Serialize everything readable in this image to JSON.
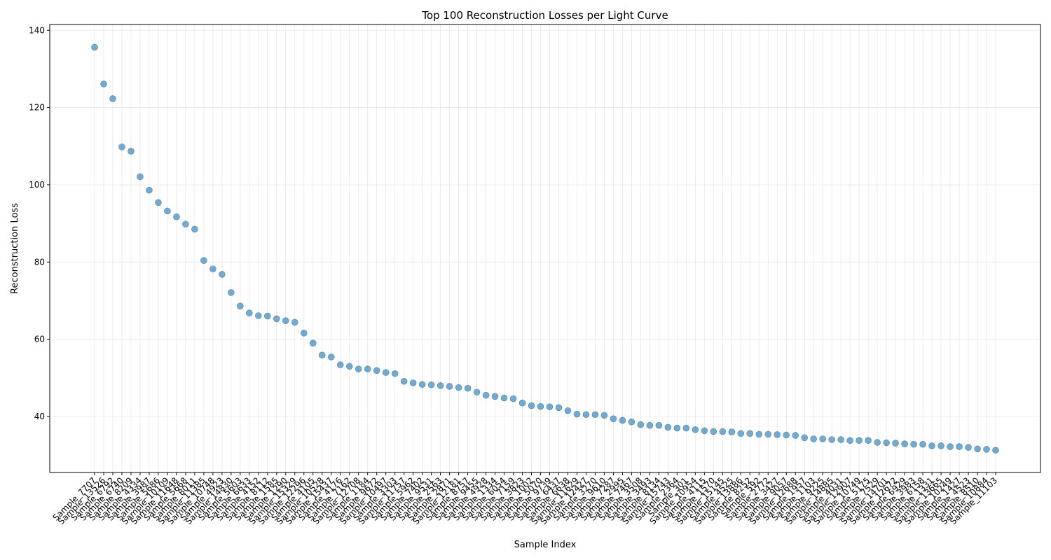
{
  "chart_data": {
    "type": "scatter",
    "title": "Top 100 Reconstruction Losses per Light Curve",
    "xlabel": "Sample Index",
    "ylabel": "Reconstruction Loss",
    "ylim": [
      25.5,
      141.5
    ],
    "yticks": [
      40,
      60,
      80,
      100,
      120,
      140
    ],
    "grid": true,
    "marker_color": "#1f77b4",
    "categories": [
      "Sample_7707",
      "Sample_13526",
      "Sample_6792",
      "Sample_6740",
      "Sample_8209",
      "Sample_4334",
      "Sample_3987",
      "Sample_5686",
      "Sample_10109",
      "Sample_11648",
      "Sample_5668",
      "Sample_8011",
      "Sample_11385",
      "Sample_10748",
      "Sample_4923",
      "Sample_14830",
      "Sample_5603",
      "Sample_6633",
      "Sample_4152",
      "Sample_8112",
      "Sample_1585",
      "Sample_1290",
      "Sample_15329",
      "Sample_12296",
      "Sample_4105",
      "Sample_10528",
      "Sample_15437",
      "Sample_4176",
      "Sample_7162",
      "Sample_12708",
      "Sample_1184",
      "Sample_9672",
      "Sample_10497",
      "Sample_3303",
      "Sample_11757",
      "Sample_5962",
      "Sample_7402",
      "Sample_9531",
      "Sample_2563",
      "Sample_2871",
      "Sample_12181",
      "Sample_8757",
      "Sample_9455",
      "Sample_4928",
      "Sample_1334",
      "Sample_6054",
      "Sample_7159",
      "Sample_3823",
      "Sample_1002",
      "Sample_5070",
      "Sample_9739",
      "Sample_6437",
      "Sample_6638",
      "Sample_11629",
      "Sample_12427",
      "Sample_3270",
      "Sample_9610",
      "Sample_7287",
      "Sample_2995",
      "Sample_7467",
      "Sample_3508",
      "Sample_3493",
      "Sample_8134",
      "Sample_15743",
      "Sample_2364",
      "Sample_301",
      "Sample_10954",
      "Sample_4115",
      "Sample_1570",
      "Sample_15145",
      "Sample_4525",
      "Sample_13886",
      "Sample_8252",
      "Sample_592",
      "Sample_2772",
      "Sample_3427",
      "Sample_9057",
      "Sample_12688",
      "Sample_1957",
      "Sample_1103",
      "Sample_9225",
      "Sample_14885",
      "Sample_4031",
      "Sample_12907",
      "Sample_10749",
      "Sample_5175",
      "Sample_7529",
      "Sample_14701",
      "Sample_12672",
      "Sample_6929",
      "Sample_3983",
      "Sample_6158",
      "Sample_1331",
      "Sample_13665",
      "Sample_10249",
      "Sample_1427",
      "Sample_4523",
      "Sample_8510",
      "Sample_10884",
      "Sample_11103"
    ],
    "values": [
      135.6,
      126.1,
      122.3,
      109.8,
      108.7,
      102.1,
      98.6,
      95.4,
      93.2,
      91.7,
      89.8,
      88.5,
      80.4,
      78.2,
      76.8,
      72.1,
      68.6,
      66.8,
      66.1,
      66.0,
      65.3,
      64.8,
      64.4,
      61.6,
      59.0,
      55.9,
      55.4,
      53.4,
      53.0,
      52.3,
      52.3,
      51.9,
      51.4,
      51.1,
      49.1,
      48.7,
      48.3,
      48.2,
      48.0,
      47.8,
      47.5,
      47.3,
      46.3,
      45.5,
      45.2,
      44.8,
      44.6,
      43.5,
      42.8,
      42.6,
      42.5,
      42.3,
      41.5,
      40.6,
      40.5,
      40.5,
      40.3,
      39.4,
      39.0,
      38.6,
      37.9,
      37.7,
      37.7,
      37.2,
      37.0,
      37.0,
      36.6,
      36.3,
      36.1,
      36.1,
      36.0,
      35.6,
      35.6,
      35.4,
      35.4,
      35.3,
      35.2,
      35.1,
      34.5,
      34.2,
      34.2,
      34.0,
      34.0,
      33.8,
      33.8,
      33.8,
      33.3,
      33.2,
      33.1,
      32.9,
      32.8,
      32.8,
      32.4,
      32.4,
      32.2,
      32.2,
      32.0,
      31.6,
      31.5,
      31.3
    ]
  }
}
